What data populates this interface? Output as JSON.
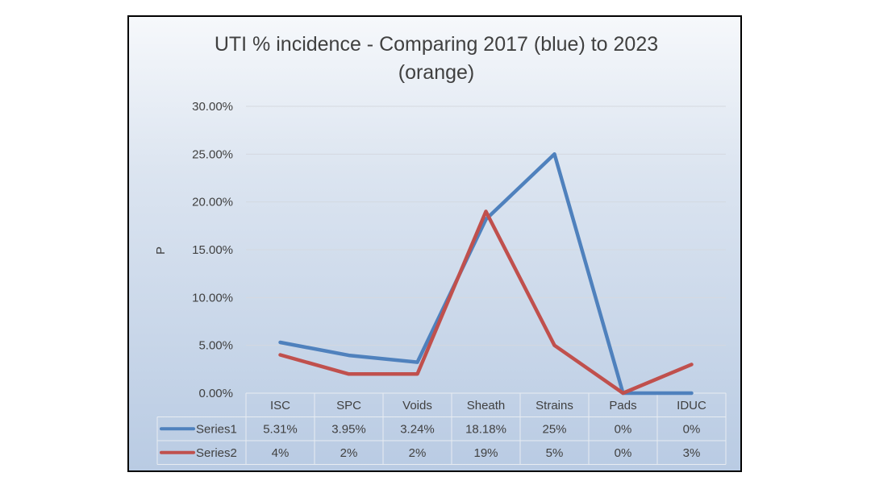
{
  "chart_data": {
    "type": "line",
    "title_line1": "UTI % incidence - Comparing  2017 (blue) to 2023",
    "title_line2": "(orange)",
    "ylabel": "P",
    "ylim": [
      0,
      30
    ],
    "yticks": [
      "0.00%",
      "5.00%",
      "10.00%",
      "15.00%",
      "20.00%",
      "25.00%",
      "30.00%"
    ],
    "grid": true,
    "categories": [
      "ISC",
      "SPC",
      "Voids",
      "Sheath",
      "Strains",
      "Pads",
      "IDUC"
    ],
    "series": [
      {
        "name": "Series1",
        "color": "#4f81bd",
        "values": [
          5.31,
          3.95,
          3.24,
          18.18,
          25,
          0,
          0
        ],
        "labels": [
          "5.31%",
          "3.95%",
          "3.24%",
          "18.18%",
          "25%",
          "0%",
          "0%"
        ]
      },
      {
        "name": "Series2",
        "color": "#c0504d",
        "values": [
          4,
          2,
          2,
          19,
          5,
          0,
          3
        ],
        "labels": [
          "4%",
          "2%",
          "2%",
          "19%",
          "5%",
          "0%",
          "3%"
        ]
      }
    ],
    "legend": "data-table"
  }
}
